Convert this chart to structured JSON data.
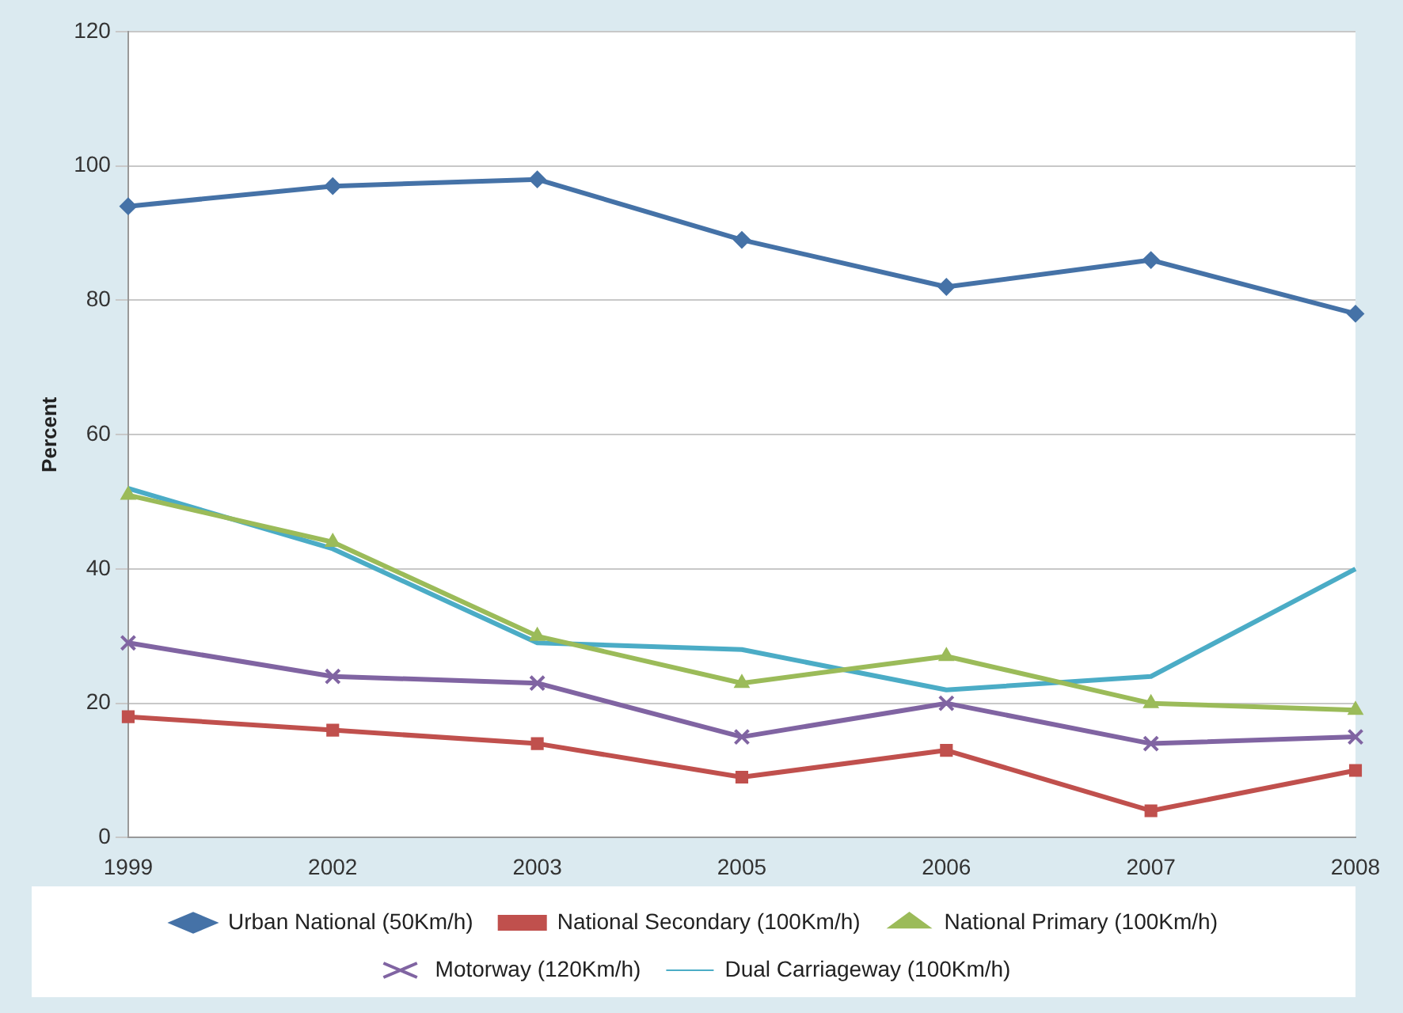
{
  "chart_data": {
    "type": "line",
    "ylabel": "Percent",
    "categories": [
      "1999",
      "2002",
      "2003",
      "2005",
      "2006",
      "2007",
      "2008"
    ],
    "series": [
      {
        "name": "Urban National (50Km/h)",
        "color": "#4572a7",
        "marker": "diamond",
        "values": [
          94,
          97,
          98,
          89,
          82,
          86,
          78
        ]
      },
      {
        "name": "National Secondary (100Km/h)",
        "color": "#c0504d",
        "marker": "square",
        "values": [
          18,
          16,
          14,
          9,
          13,
          4,
          10
        ]
      },
      {
        "name": "National Primary (100Km/h)",
        "color": "#9bbb59",
        "marker": "triangle",
        "values": [
          51,
          44,
          30,
          23,
          27,
          20,
          19
        ]
      },
      {
        "name": "Motorway (120Km/h)",
        "color": "#8064a2",
        "marker": "cross",
        "values": [
          29,
          24,
          23,
          15,
          20,
          14,
          15
        ]
      },
      {
        "name": "Dual Carriageway (100Km/h)",
        "color": "#4bacc6",
        "marker": "none",
        "values": [
          52,
          43,
          29,
          28,
          22,
          24,
          40
        ]
      }
    ],
    "ylim": [
      0,
      120
    ],
    "yticks": [
      0,
      20,
      40,
      60,
      80,
      100,
      120
    ],
    "grid": "y",
    "legend": "bottom",
    "line_style": "solid"
  }
}
